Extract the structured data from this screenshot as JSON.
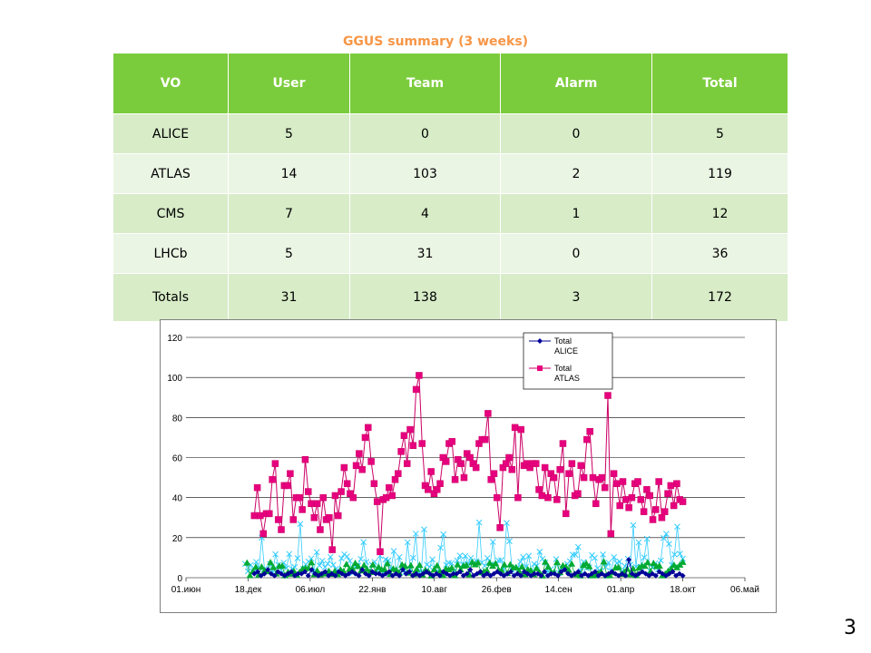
{
  "title": "GGUS summary (3 weeks)",
  "table": {
    "headers": [
      "VO",
      "User",
      "Team",
      "Alarm",
      "Total"
    ],
    "rows": [
      [
        "ALICE",
        "5",
        "0",
        "0",
        "5"
      ],
      [
        "ATLAS",
        "14",
        "103",
        "2",
        "119"
      ],
      [
        "CMS",
        "7",
        "4",
        "1",
        "12"
      ],
      [
        "LHCb",
        "5",
        "31",
        "0",
        "36"
      ],
      [
        "Totals",
        "31",
        "138",
        "3",
        "172"
      ]
    ]
  },
  "page_number": "3",
  "chart_data": {
    "type": "line",
    "title": "",
    "xlabel": "",
    "ylabel": "",
    "ylim": [
      0,
      120
    ],
    "yticks": [
      0,
      20,
      40,
      60,
      80,
      100,
      120
    ],
    "xticks": [
      "01.июн",
      "18.дек",
      "06.июл",
      "22.янв",
      "10.авг",
      "26.фев",
      "14.сен",
      "01.апр",
      "18.окт",
      "06.май"
    ],
    "grid": "horizontal",
    "legend_position": "top-right",
    "legend": [
      "Total ALICE",
      "Total ATLAS"
    ],
    "colors": {
      "alice": "#000099",
      "atlas": "#cc0066",
      "atlas_marker": "#e6007e",
      "cyan": "#33ccff",
      "green": "#00aa33"
    },
    "series": [
      {
        "name": "Total ALICE",
        "values": [
          2,
          3,
          1,
          2,
          4,
          2,
          1,
          3,
          2,
          1,
          2,
          3,
          1,
          2,
          2,
          3,
          1,
          4,
          2,
          1,
          2,
          3,
          1,
          2,
          1,
          3,
          2,
          1,
          2,
          3,
          2,
          1,
          4,
          2,
          1,
          3,
          2,
          2,
          1,
          2,
          3,
          1,
          2,
          1,
          4,
          2,
          3,
          1,
          2,
          1,
          2,
          3,
          2,
          1,
          2,
          1,
          3,
          2,
          1,
          2,
          2,
          3,
          1,
          2,
          4,
          1,
          2,
          3,
          1,
          2,
          1,
          2,
          3,
          2,
          1,
          2,
          3,
          1,
          2,
          1,
          3,
          2,
          1,
          2,
          2,
          1,
          3,
          1,
          2,
          2,
          1,
          3,
          4,
          2,
          1,
          2,
          3,
          1,
          2,
          1,
          2,
          3,
          1,
          2,
          1,
          2,
          3,
          2,
          1,
          2,
          1,
          9,
          2,
          1,
          2,
          3,
          2,
          1,
          2,
          1,
          3,
          2,
          1,
          2,
          3,
          1,
          2,
          1
        ]
      },
      {
        "name": "Total ATLAS",
        "values": [
          31,
          45,
          31,
          22,
          32,
          32,
          49,
          57,
          29,
          24,
          46,
          46,
          52,
          29,
          40,
          40,
          34,
          59,
          43,
          37,
          30,
          37,
          24,
          40,
          29,
          30,
          14,
          41,
          31,
          43,
          55,
          47,
          42,
          40,
          56,
          62,
          54,
          70,
          75,
          58,
          47,
          38,
          13,
          39,
          40,
          45,
          41,
          49,
          52,
          63,
          71,
          57,
          74,
          66,
          94,
          101,
          67,
          46,
          44,
          53,
          42,
          44,
          47,
          60,
          58,
          67,
          68,
          49,
          59,
          57,
          50,
          62,
          60,
          57,
          55,
          67,
          69,
          69,
          82,
          49,
          52,
          40,
          25,
          55,
          57,
          60,
          54,
          75,
          40,
          74,
          56,
          57,
          55,
          57,
          57,
          44,
          41,
          55,
          40,
          52,
          50,
          39,
          54,
          67,
          32,
          52,
          57,
          41,
          42,
          56,
          50,
          69,
          73,
          50,
          37,
          49,
          50,
          45,
          91,
          22,
          52,
          47,
          36,
          48,
          39,
          35,
          40,
          47,
          48,
          39,
          33,
          44,
          41,
          29,
          34,
          48,
          30,
          33,
          42,
          46,
          36,
          47,
          39,
          38
        ],
        "marker": "square"
      }
    ]
  }
}
